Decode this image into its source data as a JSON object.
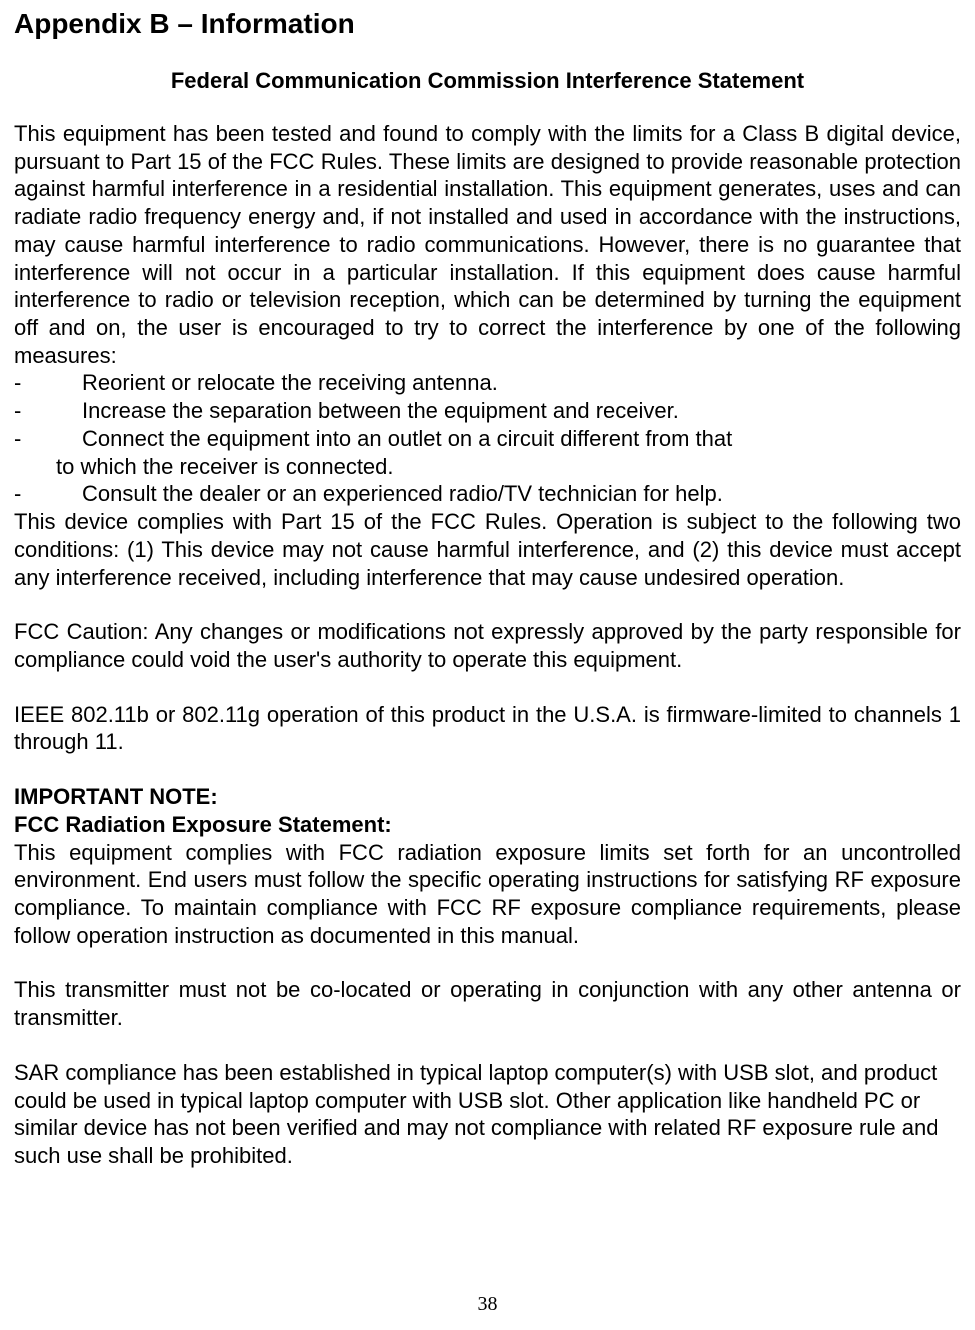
{
  "title": "Appendix B – Information",
  "subtitle": "Federal Communication Commission Interference Statement",
  "para1": "This equipment has been tested and found to comply with the limits for a Class B digital device, pursuant to Part 15 of the FCC Rules.  These limits are designed to provide reasonable protection against harmful interference in a residential installation.  This equipment generates, uses and can radiate radio frequency energy and, if not installed and used in accordance with the instructions, may cause harmful interference to radio communications.  However, there is no guarantee that interference will not occur in a particular installation.  If this equipment does cause harmful interference to radio or television reception, which can be determined by turning the equipment off and on, the user is encouraged to try to correct the interference by one of the following measures:",
  "bullets": {
    "b1": "Reorient or relocate the receiving antenna.",
    "b2": "Increase the separation between the equipment and receiver.",
    "b3": "Connect the equipment into an outlet on a circuit different from that",
    "b3cont": "to which the receiver is connected.",
    "b4": "Consult the dealer or an experienced radio/TV technician for help."
  },
  "para2": "This device complies with Part 15 of the FCC Rules. Operation is subject to the following two conditions: (1) This device may not cause harmful interference, and (2) this device must accept any interference received, including interference that may cause undesired operation.",
  "para3": "FCC Caution: Any changes or modifications not expressly approved by the party responsible for compliance could void the user's authority to operate this equipment.",
  "para4": "IEEE 802.11b or 802.11g operation of this product in the U.S.A. is firmware-limited to channels 1 through 11.",
  "importantNote": "IMPORTANT NOTE:",
  "radiationHeader": "FCC Radiation Exposure Statement:",
  "para5": "This equipment complies with FCC radiation exposure limits set forth for an uncontrolled environment. End users must follow the specific operating instructions for satisfying RF exposure compliance. To maintain compliance with FCC RF exposure compliance requirements, please follow operation instruction as documented in this manual.",
  "para6": "This transmitter must not be co-located or operating in conjunction with any other antenna or transmitter.",
  "para7": "SAR compliance has been established in typical laptop computer(s) with USB slot, and product could be used in typical laptop computer with USB slot. Other application like handheld PC or similar device has not been verified and may not compliance with related RF exposure rule and such use shall be prohibited.",
  "pageNumber": "38",
  "dash": "-"
}
